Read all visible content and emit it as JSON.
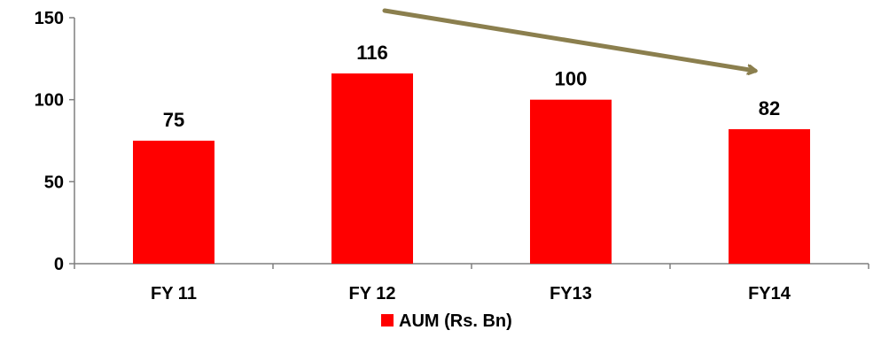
{
  "chart_data": {
    "type": "bar",
    "categories": [
      "FY 11",
      "FY 12",
      "FY13",
      "FY14"
    ],
    "series": [
      {
        "name": "AUM (Rs. Bn)",
        "values": [
          75,
          116,
          100,
          82
        ],
        "color": "#ff0000"
      }
    ],
    "data_labels": [
      "75",
      "116",
      "100",
      "82"
    ],
    "ylim": [
      0,
      150
    ],
    "yticks": [
      0,
      50,
      100,
      150
    ],
    "grid": false,
    "legend_position": "bottom",
    "annotation": {
      "type": "trend-arrow",
      "color": "#8b7f4e",
      "direction": "downward"
    }
  }
}
